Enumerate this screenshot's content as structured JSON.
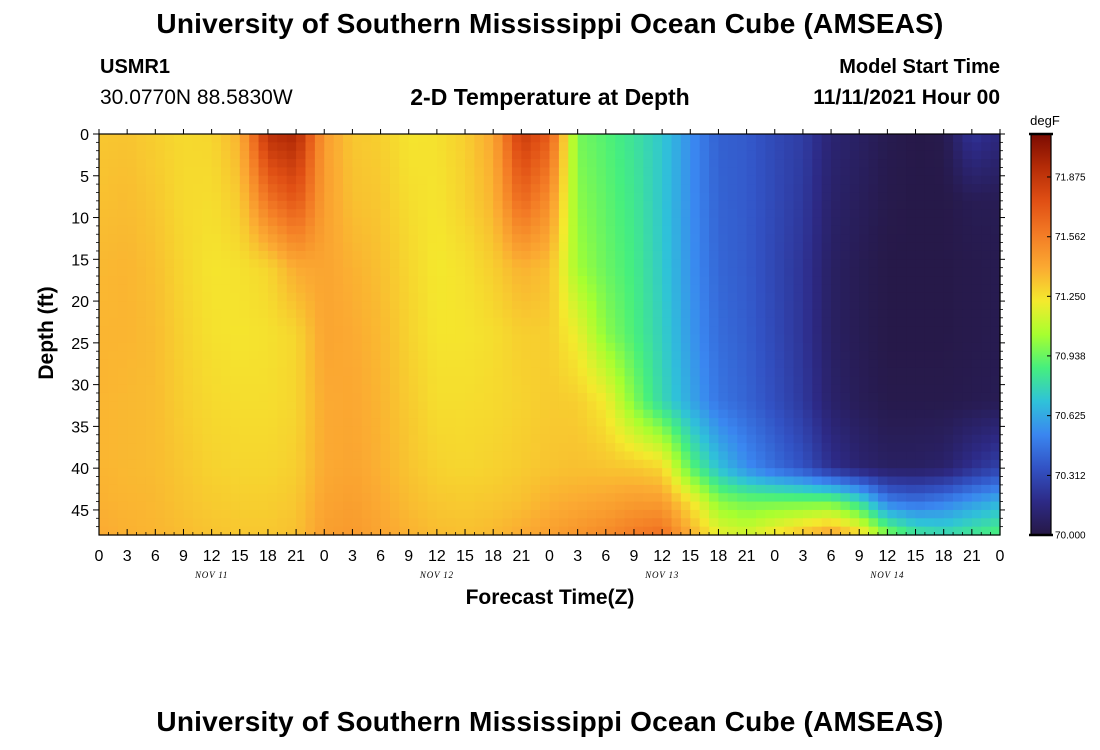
{
  "page": {
    "title": "University of Southern Mississippi Ocean Cube (AMSEAS)",
    "station_id": "USMR1",
    "station_coords": "30.0770N  88.5830W",
    "model_start_label": "Model Start Time",
    "model_start_value": "11/11/2021 Hour 00"
  },
  "chart_data": {
    "type": "heatmap",
    "title": "2-D Temperature at Depth",
    "xlabel": "Forecast Time(Z)",
    "ylabel": "Depth (ft)",
    "x_unit": "forecast hour",
    "xlim": [
      0,
      96
    ],
    "ylim": [
      0,
      48
    ],
    "y_inverted": true,
    "x_tick_labels": [
      "0",
      "3",
      "6",
      "9",
      "12",
      "15",
      "18",
      "21",
      "0",
      "3",
      "6",
      "9",
      "12",
      "15",
      "18",
      "21",
      "0",
      "3",
      "6",
      "9",
      "12",
      "15",
      "18",
      "21",
      "0",
      "3",
      "6",
      "9",
      "12",
      "15",
      "18",
      "21",
      "0"
    ],
    "day_labels": [
      {
        "hour": 12,
        "label": "NOV 11"
      },
      {
        "hour": 36,
        "label": "NOV 12"
      },
      {
        "hour": 60,
        "label": "NOV 13"
      },
      {
        "hour": 84,
        "label": "NOV 14"
      }
    ],
    "y_ticks": [
      0,
      5,
      10,
      15,
      20,
      25,
      30,
      35,
      40,
      45
    ],
    "colorbar": {
      "label": "degF",
      "min": 70.0,
      "max": 72.1,
      "ticks": [
        "70.000",
        "70.312",
        "70.625",
        "70.938",
        "71.250",
        "71.562",
        "71.875"
      ],
      "colors": [
        "#261845",
        "#2d2a86",
        "#3252c4",
        "#3a86f0",
        "#2fc2d9",
        "#46ef7e",
        "#a7ff2f",
        "#f4ea2d",
        "#fbaa32",
        "#f37b25",
        "#e04f14",
        "#b52c07",
        "#7b0b02"
      ]
    },
    "x_hours": [
      0,
      3,
      6,
      9,
      12,
      15,
      18,
      21,
      24,
      27,
      30,
      33,
      36,
      39,
      42,
      45,
      48,
      51,
      54,
      57,
      60,
      63,
      66,
      69,
      72,
      75,
      78,
      81,
      84,
      87,
      90,
      93,
      96
    ],
    "depths_ft": [
      0,
      8,
      16,
      24,
      32,
      40,
      44,
      48
    ],
    "values_degF": [
      [
        71.32,
        71.33,
        71.3,
        71.27,
        71.28,
        71.38,
        71.9,
        71.95,
        71.45,
        71.32,
        71.3,
        71.24,
        71.25,
        71.3,
        71.41,
        71.85,
        71.7,
        70.96,
        70.9,
        70.82,
        70.72,
        70.55,
        70.4,
        70.38,
        70.31,
        70.26,
        70.12,
        70.08,
        70.03,
        70.01,
        70.02,
        70.22,
        70.15
      ],
      [
        71.34,
        71.35,
        71.32,
        71.27,
        71.26,
        71.31,
        71.6,
        71.72,
        71.44,
        71.34,
        71.32,
        71.26,
        71.24,
        71.29,
        71.37,
        71.65,
        71.5,
        71.0,
        70.92,
        70.84,
        70.72,
        70.55,
        70.41,
        70.38,
        70.31,
        70.24,
        70.1,
        70.06,
        70.02,
        70.01,
        70.01,
        70.04,
        70.04
      ],
      [
        71.36,
        71.37,
        71.34,
        71.28,
        71.24,
        71.25,
        71.28,
        71.4,
        71.42,
        71.38,
        71.34,
        71.28,
        71.23,
        71.25,
        71.3,
        71.38,
        71.34,
        71.04,
        70.94,
        70.86,
        70.73,
        70.56,
        70.42,
        70.38,
        70.3,
        70.22,
        70.08,
        70.04,
        70.01,
        70.01,
        70.01,
        70.02,
        70.03
      ],
      [
        71.37,
        71.37,
        71.35,
        71.29,
        71.25,
        71.24,
        71.25,
        71.28,
        71.42,
        71.4,
        71.36,
        71.29,
        71.24,
        71.24,
        71.26,
        71.3,
        71.3,
        71.2,
        71.0,
        70.88,
        70.75,
        70.58,
        70.44,
        70.39,
        70.31,
        70.22,
        70.08,
        70.04,
        70.01,
        70.01,
        70.01,
        70.02,
        70.03
      ],
      [
        71.37,
        71.36,
        71.35,
        71.3,
        71.27,
        71.26,
        71.26,
        71.28,
        71.4,
        71.41,
        71.37,
        71.31,
        71.26,
        71.26,
        71.27,
        71.29,
        71.31,
        71.3,
        71.22,
        70.98,
        70.78,
        70.62,
        70.47,
        70.41,
        70.33,
        70.24,
        70.1,
        70.05,
        70.02,
        70.02,
        70.02,
        70.03,
        70.04
      ],
      [
        71.37,
        71.36,
        71.35,
        71.32,
        71.29,
        71.28,
        71.28,
        71.3,
        71.4,
        71.42,
        71.38,
        71.33,
        71.29,
        71.28,
        71.29,
        71.31,
        71.33,
        71.34,
        71.33,
        71.32,
        71.28,
        70.92,
        70.7,
        70.55,
        70.44,
        70.35,
        70.2,
        70.12,
        70.08,
        70.08,
        70.1,
        70.2,
        70.28
      ],
      [
        71.38,
        71.37,
        71.36,
        71.33,
        71.31,
        71.3,
        71.3,
        71.32,
        71.42,
        71.44,
        71.4,
        71.35,
        71.32,
        71.31,
        71.32,
        71.34,
        71.38,
        71.4,
        71.42,
        71.45,
        71.45,
        71.25,
        71.0,
        70.95,
        70.95,
        70.95,
        70.95,
        70.8,
        70.5,
        70.45,
        70.5,
        70.58,
        70.65
      ],
      [
        71.4,
        71.38,
        71.37,
        71.35,
        71.33,
        71.32,
        71.32,
        71.34,
        71.44,
        71.46,
        71.42,
        71.38,
        71.35,
        71.34,
        71.36,
        71.4,
        71.44,
        71.48,
        71.52,
        71.58,
        71.62,
        71.4,
        71.2,
        71.15,
        71.25,
        71.35,
        71.45,
        71.3,
        71.0,
        70.85,
        70.8,
        70.85,
        70.9
      ]
    ]
  }
}
